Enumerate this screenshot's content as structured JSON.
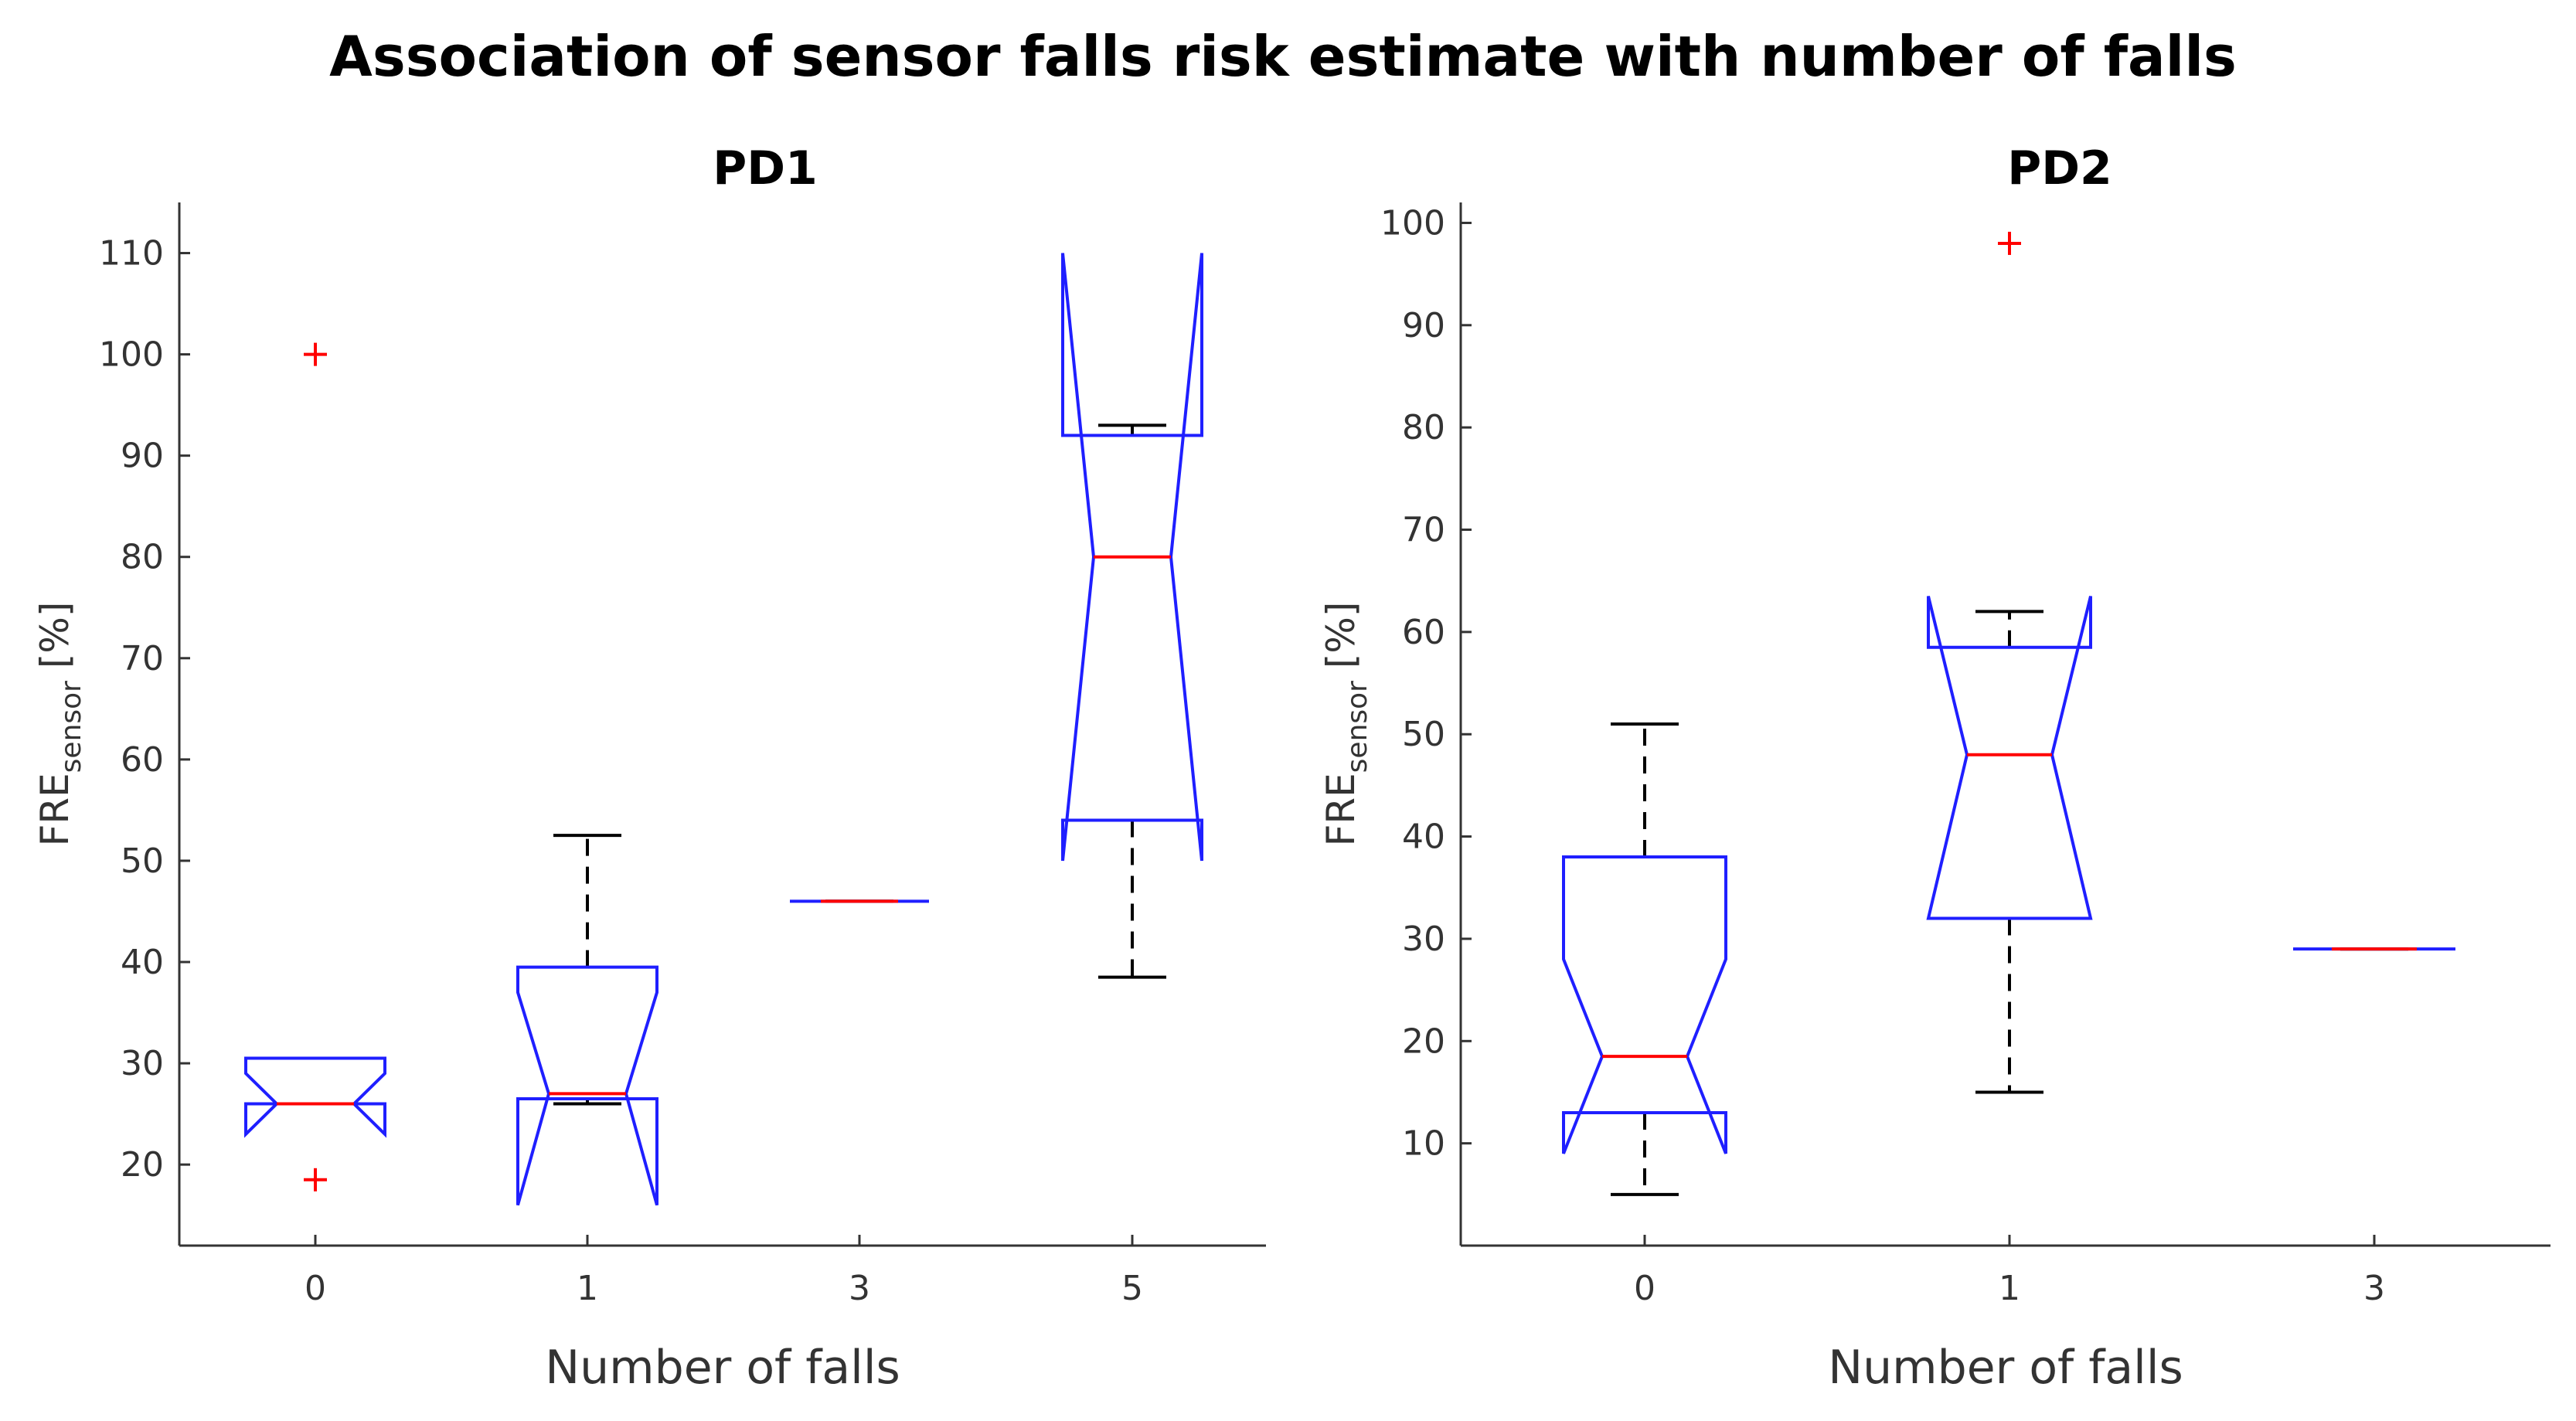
{
  "title": "Association of sensor falls risk estimate with number of falls",
  "colors": {
    "box": "#1f1fff",
    "median": "#ff0000",
    "whisker": "#000000",
    "outlier": "#ff0000",
    "axis": "#333333"
  },
  "chart_data": [
    {
      "type": "boxplot",
      "title": "PD1",
      "xlabel": "Number of falls",
      "ylabel_main": "FRE",
      "ylabel_sub": "sensor",
      "ylabel_unit": "[%]",
      "ylim": [
        12,
        115
      ],
      "yticks": [
        20,
        30,
        40,
        50,
        60,
        70,
        80,
        90,
        100,
        110
      ],
      "categories": [
        "0",
        "1",
        "3",
        "5"
      ],
      "boxes": [
        {
          "category": "0",
          "q1": 26,
          "median": 26,
          "q3": 30.5,
          "notch_low": 23,
          "notch_high": 29,
          "whisker_low": 26,
          "whisker_high": 30.5,
          "outliers": [
            100,
            18.5
          ]
        },
        {
          "category": "1",
          "q1": 26.5,
          "median": 27,
          "q3": 39.5,
          "notch_low": 16,
          "notch_high": 37,
          "whisker_low": 26,
          "whisker_high": 52.5,
          "outliers": []
        },
        {
          "category": "3",
          "q1": 46,
          "median": 46,
          "q3": 46,
          "notch_low": 46,
          "notch_high": 46,
          "whisker_low": 46,
          "whisker_high": 46,
          "outliers": []
        },
        {
          "category": "5",
          "q1": 54,
          "median": 80,
          "q3": 92,
          "notch_low": 50,
          "notch_high": 110,
          "whisker_low": 38.5,
          "whisker_high": 93,
          "outliers": []
        }
      ]
    },
    {
      "type": "boxplot",
      "title": "PD2",
      "xlabel": "Number of falls",
      "ylabel_main": "FRE",
      "ylabel_sub": "sensor",
      "ylabel_unit": "[%]",
      "ylim": [
        0,
        102
      ],
      "yticks": [
        10,
        20,
        30,
        40,
        50,
        60,
        70,
        80,
        90,
        100
      ],
      "categories": [
        "0",
        "1",
        "3"
      ],
      "boxes": [
        {
          "category": "0",
          "q1": 13,
          "median": 18.5,
          "q3": 38,
          "notch_low": 9,
          "notch_high": 28,
          "whisker_low": 5,
          "whisker_high": 51,
          "outliers": []
        },
        {
          "category": "1",
          "q1": 32,
          "median": 48,
          "q3": 58.5,
          "notch_low": 32,
          "notch_high": 63.5,
          "whisker_low": 15,
          "whisker_high": 62,
          "outliers": [
            98
          ]
        },
        {
          "category": "3",
          "q1": 29,
          "median": 29,
          "q3": 29,
          "notch_low": 29,
          "notch_high": 29,
          "whisker_low": 29,
          "whisker_high": 29,
          "outliers": []
        }
      ]
    }
  ]
}
